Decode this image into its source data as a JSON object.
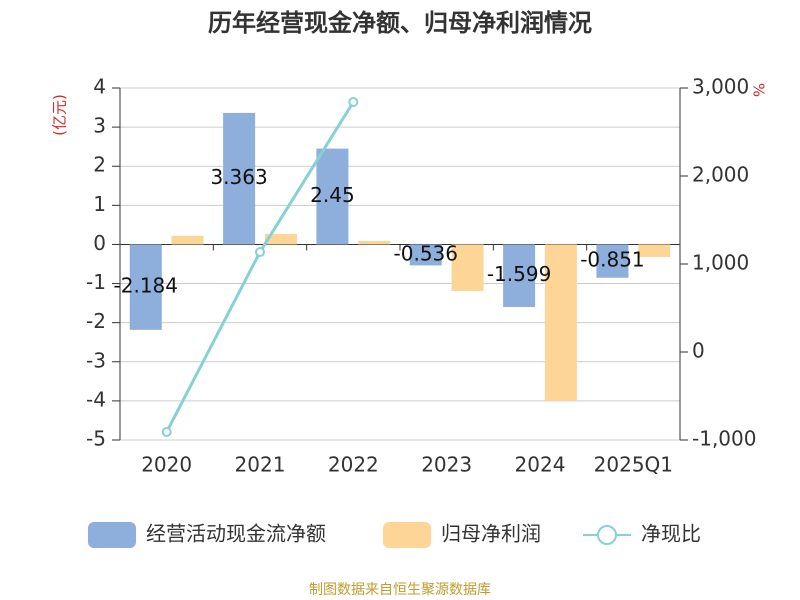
{
  "chart_data": {
    "type": "bar",
    "title": "历年经营现金净额、归母净利润情况",
    "ylabel": "(亿元)",
    "y2label": "%",
    "source": "制图数据来自恒生聚源数据库",
    "categories": [
      "2020",
      "2021",
      "2022",
      "2023",
      "2024",
      "2025Q1"
    ],
    "series": [
      {
        "name": "经营活动现金流净额",
        "color": "#8eaedb",
        "type": "bar",
        "values": [
          -2.184,
          3.363,
          2.45,
          -0.536,
          -1.599,
          -0.851
        ],
        "show_labels": true
      },
      {
        "name": "归母净利润",
        "color": "#fdd597",
        "type": "bar",
        "values": [
          0.22,
          0.27,
          0.09,
          -1.19,
          -4.0,
          -0.32
        ]
      },
      {
        "name": "净现比",
        "color": "#86d0d6",
        "type": "line",
        "axis": "y2",
        "values": [
          -909,
          1136,
          2841,
          null,
          null,
          null
        ]
      }
    ],
    "ylim": [
      -5,
      4
    ],
    "yticks": [
      -5,
      -4,
      -3,
      -2,
      -1,
      0,
      1,
      2,
      3,
      4
    ],
    "y2lim": [
      -1000,
      3000
    ],
    "y2ticks": [
      {
        "value": -1000,
        "label": "-1,000"
      },
      0,
      {
        "value": 1000,
        "label": "1,000"
      },
      {
        "value": 2000,
        "label": "2,000"
      },
      {
        "value": 3000,
        "label": "3,000"
      }
    ],
    "grid": true
  }
}
